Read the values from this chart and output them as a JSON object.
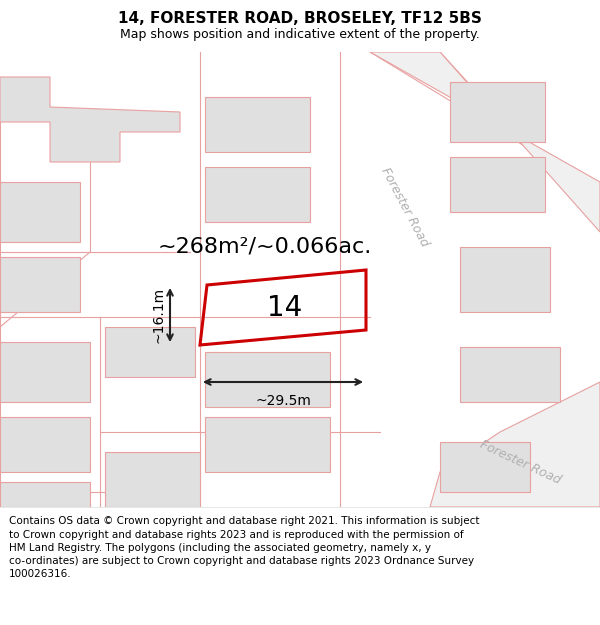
{
  "title": "14, FORESTER ROAD, BROSELEY, TF12 5BS",
  "subtitle": "Map shows position and indicative extent of the property.",
  "area_label": "~268m²/~0.066ac.",
  "plot_number": "14",
  "dim_width": "~29.5m",
  "dim_height": "~16.1m",
  "road_label": "Forester Road",
  "footer_text": "Contains OS data © Crown copyright and database right 2021. This information is subject\nto Crown copyright and database rights 2023 and is reproduced with the permission of\nHM Land Registry. The polygons (including the associated geometry, namely x, y\nco-ordinates) are subject to Crown copyright and database rights 2023 Ordnance Survey\n100026316.",
  "map_bg": "#ffffff",
  "building_fill": "#e0e0e0",
  "building_edge": "#e8a0a0",
  "plot_edge_color": "#cc0000",
  "dim_color": "#222222",
  "road_text_color": "#b0b0b0",
  "title_fontsize": 11,
  "subtitle_fontsize": 9,
  "footer_fontsize": 7.5,
  "area_fontsize": 16,
  "number_fontsize": 20,
  "dim_fontsize": 10,
  "road_fontsize": 9
}
